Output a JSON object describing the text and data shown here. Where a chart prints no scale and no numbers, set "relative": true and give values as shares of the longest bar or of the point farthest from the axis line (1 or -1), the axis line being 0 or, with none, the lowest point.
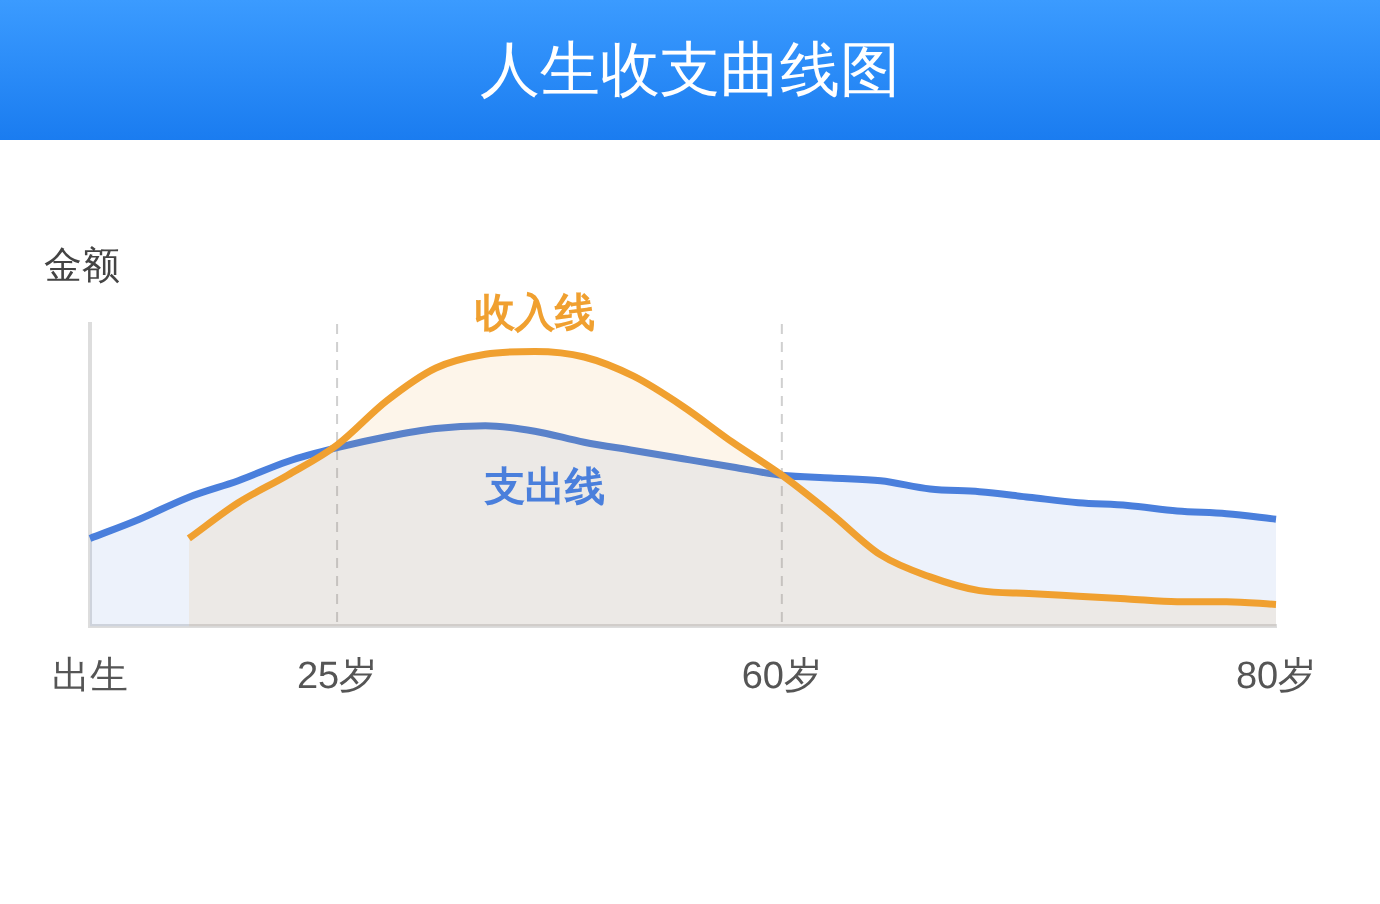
{
  "chart_data": {
    "type": "area",
    "title": "人生收支曲线图",
    "ylabel": "金额",
    "relative": true,
    "legend": false,
    "grid": false,
    "categories": [
      "出生",
      null,
      null,
      null,
      null,
      "25岁",
      null,
      null,
      null,
      null,
      null,
      null,
      null,
      null,
      "60岁",
      null,
      null,
      null,
      null,
      null,
      null,
      null,
      null,
      null,
      "80岁"
    ],
    "ref_lines": [
      {
        "axis": "x",
        "value": "25岁",
        "color": "#d0d0d0",
        "line_style": "dashed"
      },
      {
        "axis": "x",
        "value": "60岁",
        "color": "#d0d0d0",
        "line_style": "dashed"
      }
    ],
    "series": [
      {
        "name": "收入线",
        "color": "#f0a030",
        "values": [
          null,
          null,
          0.32,
          0.45,
          0.55,
          0.66,
          0.82,
          0.94,
          0.99,
          1.0,
          0.98,
          0.91,
          0.8,
          0.67,
          0.55,
          0.41,
          0.26,
          0.18,
          0.13,
          0.12,
          0.11,
          0.1,
          0.09,
          0.09,
          0.08
        ]
      },
      {
        "name": "支出线",
        "color": "#4a7fdc",
        "values": [
          0.32,
          0.39,
          0.47,
          0.53,
          0.6,
          0.65,
          0.69,
          0.72,
          0.73,
          0.71,
          0.67,
          0.64,
          0.61,
          0.58,
          0.55,
          0.54,
          0.53,
          0.5,
          0.49,
          0.47,
          0.45,
          0.44,
          0.42,
          0.41,
          0.39
        ]
      }
    ]
  }
}
